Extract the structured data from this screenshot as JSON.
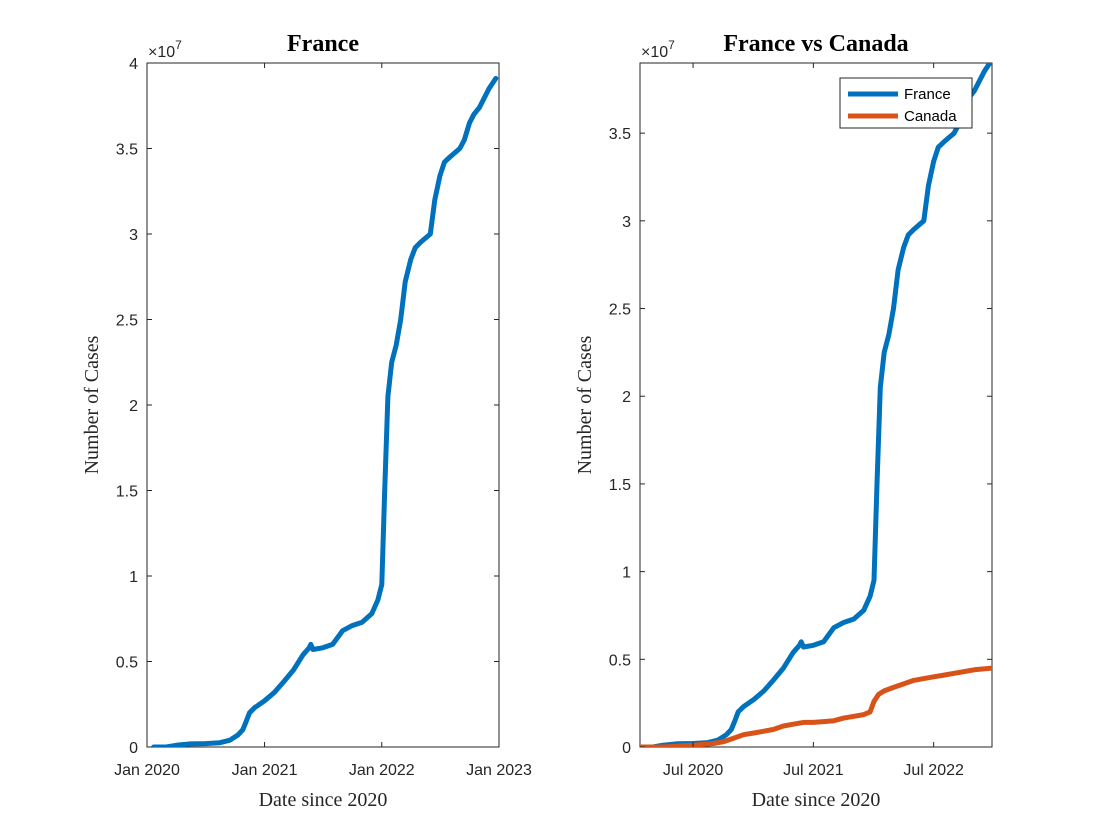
{
  "chart_data": [
    {
      "type": "line",
      "title": "France",
      "xlabel": "Date since 2020",
      "ylabel": "Number of Cases",
      "y_exponent_label": "×10",
      "y_exponent_power": "7",
      "xlim": [
        "2020-01-01",
        "2023-01-01"
      ],
      "ylim": [
        0,
        4
      ],
      "x_ticks": [
        {
          "date": "2020-01-01",
          "label": "Jan 2020"
        },
        {
          "date": "2021-01-01",
          "label": "Jan 2021"
        },
        {
          "date": "2022-01-01",
          "label": "Jan 2022"
        },
        {
          "date": "2023-01-01",
          "label": "Jan 2023"
        }
      ],
      "y_ticks": [
        {
          "value": 0,
          "label": "0"
        },
        {
          "value": 0.5,
          "label": "0.5"
        },
        {
          "value": 1,
          "label": "1"
        },
        {
          "value": 1.5,
          "label": "1.5"
        },
        {
          "value": 2,
          "label": "2"
        },
        {
          "value": 2.5,
          "label": "2.5"
        },
        {
          "value": 3,
          "label": "3"
        },
        {
          "value": 3.5,
          "label": "3.5"
        },
        {
          "value": 4,
          "label": "4"
        }
      ],
      "grid": false,
      "series": [
        {
          "color": "#0072BD",
          "x": [
            "2020-01-22",
            "2020-03-01",
            "2020-04-01",
            "2020-05-15",
            "2020-07-01",
            "2020-08-15",
            "2020-09-15",
            "2020-10-10",
            "2020-10-25",
            "2020-11-05",
            "2020-11-15",
            "2020-12-01",
            "2021-01-01",
            "2021-02-01",
            "2021-03-01",
            "2021-04-01",
            "2021-05-01",
            "2021-05-20",
            "2021-05-25",
            "2021-06-01",
            "2021-07-01",
            "2021-08-01",
            "2021-09-01",
            "2021-10-01",
            "2021-11-01",
            "2021-12-01",
            "2021-12-20",
            "2022-01-01",
            "2022-01-10",
            "2022-01-20",
            "2022-02-01",
            "2022-02-15",
            "2022-03-01",
            "2022-03-15",
            "2022-04-01",
            "2022-04-15",
            "2022-05-01",
            "2022-06-01",
            "2022-06-15",
            "2022-07-01",
            "2022-07-15",
            "2022-08-01",
            "2022-09-01",
            "2022-09-15",
            "2022-10-01",
            "2022-10-15",
            "2022-11-01",
            "2022-12-01",
            "2022-12-22"
          ],
          "y": [
            0.0,
            0.0,
            0.01,
            0.018,
            0.02,
            0.025,
            0.04,
            0.07,
            0.1,
            0.15,
            0.2,
            0.23,
            0.27,
            0.32,
            0.38,
            0.45,
            0.54,
            0.58,
            0.6,
            0.57,
            0.58,
            0.6,
            0.68,
            0.71,
            0.73,
            0.78,
            0.86,
            0.95,
            1.5,
            2.05,
            2.25,
            2.35,
            2.5,
            2.72,
            2.85,
            2.92,
            2.95,
            3.0,
            3.2,
            3.34,
            3.42,
            3.45,
            3.5,
            3.55,
            3.65,
            3.7,
            3.74,
            3.85,
            3.91
          ]
        }
      ]
    },
    {
      "type": "line",
      "title": "France vs Canada",
      "xlabel": "Date since 2020",
      "ylabel": "Number of Cases",
      "y_exponent_label": "×10",
      "y_exponent_power": "7",
      "xlim": [
        "2020-01-22",
        "2022-12-25"
      ],
      "ylim": [
        0,
        3.9
      ],
      "x_ticks": [
        {
          "date": "2020-07-01",
          "label": "Jul 2020"
        },
        {
          "date": "2021-07-01",
          "label": "Jul 2021"
        },
        {
          "date": "2022-07-01",
          "label": "Jul 2022"
        }
      ],
      "y_ticks": [
        {
          "value": 0,
          "label": "0"
        },
        {
          "value": 0.5,
          "label": "0.5"
        },
        {
          "value": 1,
          "label": "1"
        },
        {
          "value": 1.5,
          "label": "1.5"
        },
        {
          "value": 2,
          "label": "2"
        },
        {
          "value": 2.5,
          "label": "2.5"
        },
        {
          "value": 3,
          "label": "3"
        },
        {
          "value": 3.5,
          "label": "3.5"
        }
      ],
      "grid": false,
      "legend_position": "top-right",
      "series": [
        {
          "name": "France",
          "color": "#0072BD",
          "x": [
            "2020-01-22",
            "2020-03-01",
            "2020-04-01",
            "2020-05-15",
            "2020-07-01",
            "2020-08-15",
            "2020-09-15",
            "2020-10-10",
            "2020-10-25",
            "2020-11-05",
            "2020-11-15",
            "2020-12-01",
            "2021-01-01",
            "2021-02-01",
            "2021-03-01",
            "2021-04-01",
            "2021-05-01",
            "2021-05-20",
            "2021-05-25",
            "2021-06-01",
            "2021-07-01",
            "2021-08-01",
            "2021-09-01",
            "2021-10-01",
            "2021-11-01",
            "2021-12-01",
            "2021-12-20",
            "2022-01-01",
            "2022-01-10",
            "2022-01-20",
            "2022-02-01",
            "2022-02-15",
            "2022-03-01",
            "2022-03-15",
            "2022-04-01",
            "2022-04-15",
            "2022-05-01",
            "2022-06-01",
            "2022-06-15",
            "2022-07-01",
            "2022-07-15",
            "2022-08-01",
            "2022-09-01",
            "2022-09-15",
            "2022-10-01",
            "2022-10-15",
            "2022-11-01",
            "2022-12-01",
            "2022-12-22"
          ],
          "y": [
            0.0,
            0.0,
            0.01,
            0.018,
            0.02,
            0.025,
            0.04,
            0.07,
            0.1,
            0.15,
            0.2,
            0.23,
            0.27,
            0.32,
            0.38,
            0.45,
            0.54,
            0.58,
            0.6,
            0.57,
            0.58,
            0.6,
            0.68,
            0.71,
            0.73,
            0.78,
            0.86,
            0.95,
            1.5,
            2.05,
            2.25,
            2.35,
            2.5,
            2.72,
            2.85,
            2.92,
            2.95,
            3.0,
            3.2,
            3.34,
            3.42,
            3.45,
            3.5,
            3.55,
            3.65,
            3.7,
            3.74,
            3.85,
            3.91
          ]
        },
        {
          "name": "Canada",
          "color": "#D95319",
          "x": [
            "2020-01-22",
            "2020-04-01",
            "2020-07-01",
            "2020-09-01",
            "2020-10-01",
            "2020-11-01",
            "2020-12-01",
            "2021-01-01",
            "2021-02-01",
            "2021-03-01",
            "2021-04-01",
            "2021-05-01",
            "2021-06-01",
            "2021-07-01",
            "2021-08-01",
            "2021-09-01",
            "2021-10-01",
            "2021-11-01",
            "2021-12-01",
            "2021-12-20",
            "2022-01-01",
            "2022-01-15",
            "2022-02-01",
            "2022-03-01",
            "2022-04-01",
            "2022-05-01",
            "2022-06-01",
            "2022-07-01",
            "2022-08-01",
            "2022-09-01",
            "2022-10-01",
            "2022-11-01",
            "2022-12-25"
          ],
          "y": [
            0.0,
            0.0,
            0.01,
            0.02,
            0.03,
            0.05,
            0.07,
            0.08,
            0.09,
            0.1,
            0.12,
            0.13,
            0.14,
            0.14,
            0.145,
            0.15,
            0.165,
            0.175,
            0.185,
            0.2,
            0.26,
            0.3,
            0.32,
            0.34,
            0.36,
            0.38,
            0.39,
            0.4,
            0.41,
            0.42,
            0.43,
            0.44,
            0.45
          ]
        }
      ]
    }
  ]
}
